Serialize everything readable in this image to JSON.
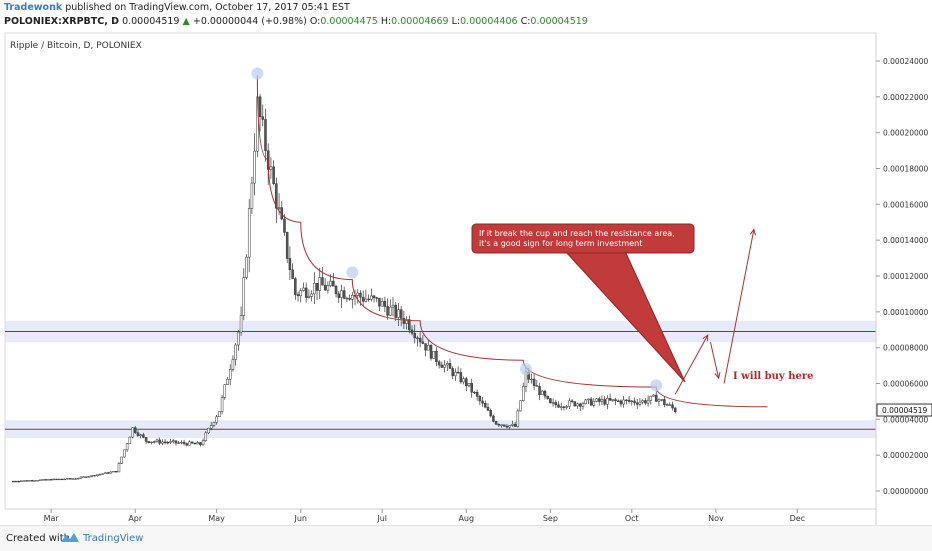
{
  "header": {
    "author": "Tradewonk",
    "published_text": "published on TradingView.com, October 17, 2017 05:41 EST",
    "symbol": "POLONIEX:XRPBTC, D",
    "last": "0.00004519",
    "change_arrow": "▲",
    "change": "+0.00000044 (+0.98%)",
    "o_label": "O:",
    "o": "0.00004475",
    "h_label": "H:",
    "h": "0.00004669",
    "l_label": "L:",
    "l": "0.00004406",
    "c_label": "C:",
    "c": "0.00004519"
  },
  "chart_title": "Ripple / Bitcoin, D, POLONIEX",
  "annotations": {
    "callout": "If it break the cup and reach the resistance area, it's a good sign for long term investment",
    "buy_text": "I will buy here"
  },
  "footer": {
    "created_with": "Created with",
    "brand": "TradingView"
  },
  "colors": {
    "up_candle": "#ffffff",
    "down_candle": "#555555",
    "candle_border": "#333333",
    "curve": "#a83232",
    "resistance": "#8b2d4a",
    "zone": "#dfe3f7",
    "callout_bg": "#c23b3b",
    "highlight": "#b7cdef"
  },
  "chart_data": {
    "type": "candlestick",
    "title": "Ripple / Bitcoin, D, POLONIEX",
    "x_ticks": [
      "Mar",
      "Apr",
      "May",
      "Jun",
      "Jul",
      "Aug",
      "Sep",
      "Oct",
      "Nov",
      "Dec"
    ],
    "y_ticks": [
      "0.00024000",
      "0.00022000",
      "0.00020000",
      "0.00018000",
      "0.00016000",
      "0.00014000",
      "0.00012000",
      "0.00010000",
      "0.00008000",
      "0.00006000",
      "0.00004000",
      "0.00002000",
      "0.00000000"
    ],
    "ylim": [
      -5e-06,
      0.000248
    ],
    "last_price_label": "0.00004519",
    "horizontal_lines": [
      8.9e-05,
      3.45e-05
    ],
    "zones": [
      [
        8.3e-05,
        9.5e-05
      ],
      [
        2.95e-05,
        3.95e-05
      ]
    ],
    "key_points": [
      {
        "date": "2017-02-15",
        "close": 5.5e-06
      },
      {
        "date": "2017-03-10",
        "close": 7e-06
      },
      {
        "date": "2017-03-25",
        "close": 1.1e-05
      },
      {
        "date": "2017-03-31",
        "close": 3.5e-05
      },
      {
        "date": "2017-04-05",
        "close": 2.8e-05
      },
      {
        "date": "2017-04-25",
        "close": 2.6e-05
      },
      {
        "date": "2017-05-02",
        "close": 4.5e-05
      },
      {
        "date": "2017-05-10",
        "close": 9.5e-05
      },
      {
        "date": "2017-05-16",
        "close": 0.000215
      },
      {
        "date": "2017-05-22",
        "close": 0.00017
      },
      {
        "date": "2017-05-30",
        "close": 0.00011
      },
      {
        "date": "2017-06-07",
        "close": 0.000115
      },
      {
        "date": "2017-06-20",
        "close": 0.00011
      },
      {
        "date": "2017-06-30",
        "close": 0.000105
      },
      {
        "date": "2017-07-10",
        "close": 9.5e-05
      },
      {
        "date": "2017-07-20",
        "close": 7.5e-05
      },
      {
        "date": "2017-08-01",
        "close": 6e-05
      },
      {
        "date": "2017-08-12",
        "close": 3.8e-05
      },
      {
        "date": "2017-08-19",
        "close": 3.6e-05
      },
      {
        "date": "2017-08-23",
        "close": 6.5e-05
      },
      {
        "date": "2017-09-01",
        "close": 4.8e-05
      },
      {
        "date": "2017-09-20",
        "close": 5e-05
      },
      {
        "date": "2017-10-05",
        "close": 5e-05
      },
      {
        "date": "2017-10-10",
        "close": 5.2e-05
      },
      {
        "date": "2017-10-17",
        "close": 4.52e-05
      }
    ],
    "resistance_curve": [
      {
        "date": "2017-05-16",
        "value": 0.000232
      },
      {
        "date": "2017-05-20",
        "value": 0.000185
      },
      {
        "date": "2017-06-01",
        "value": 0.00015
      },
      {
        "date": "2017-06-20",
        "value": 0.000118
      },
      {
        "date": "2017-07-15",
        "value": 9.5e-05
      },
      {
        "date": "2017-08-22",
        "value": 7.3e-05
      },
      {
        "date": "2017-10-10",
        "value": 5.8e-05
      },
      {
        "date": "2017-11-20",
        "value": 4.7e-05
      }
    ],
    "arrows": [
      {
        "from": {
          "date": "2017-10-17",
          "value": 5.4e-05
        },
        "to": {
          "date": "2017-10-29",
          "value": 8.7e-05
        }
      },
      {
        "from": {
          "date": "2017-10-30",
          "value": 8.3e-05
        },
        "to": {
          "date": "2017-11-02",
          "value": 6.3e-05
        }
      },
      {
        "from": {
          "date": "2017-11-04",
          "value": 6e-05
        },
        "to": {
          "date": "2017-11-15",
          "value": 0.000146
        }
      }
    ]
  }
}
